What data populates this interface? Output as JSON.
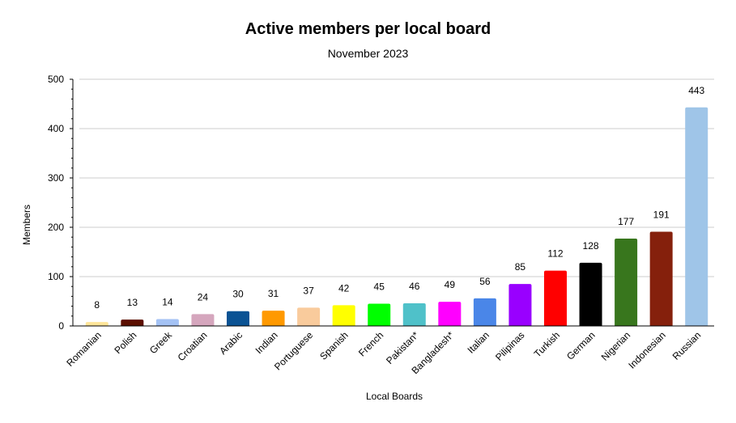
{
  "chart_data": {
    "type": "bar",
    "title": "Active members per local board",
    "subtitle": "November 2023",
    "xlabel": "Local Boards",
    "ylabel": "Members",
    "ylim": [
      0,
      500
    ],
    "yticks": [
      0,
      100,
      200,
      300,
      400,
      500
    ],
    "grid": true,
    "legend": "none",
    "categories": [
      "Romanian",
      "Polish",
      "Greek",
      "Croatian",
      "Arabic",
      "Indian",
      "Portuguese",
      "Spanish",
      "French",
      "Pakistan*",
      "Bangladesh*",
      "Italian",
      "Pilipinas",
      "Turkish",
      "German",
      "Nigerian",
      "Indonesian",
      "Russian"
    ],
    "values": [
      8,
      13,
      14,
      24,
      30,
      31,
      37,
      42,
      45,
      46,
      49,
      56,
      85,
      112,
      128,
      177,
      191,
      443
    ],
    "colors": [
      "#ffe599",
      "#5b0f00",
      "#a4c2f4",
      "#d5a6bd",
      "#0b5394",
      "#ff9900",
      "#f9cb9c",
      "#ffff00",
      "#00ff00",
      "#4fc1c9",
      "#ff00ff",
      "#4a86e8",
      "#9900ff",
      "#ff0000",
      "#000000",
      "#38761d",
      "#85200c",
      "#9fc5e8"
    ]
  }
}
